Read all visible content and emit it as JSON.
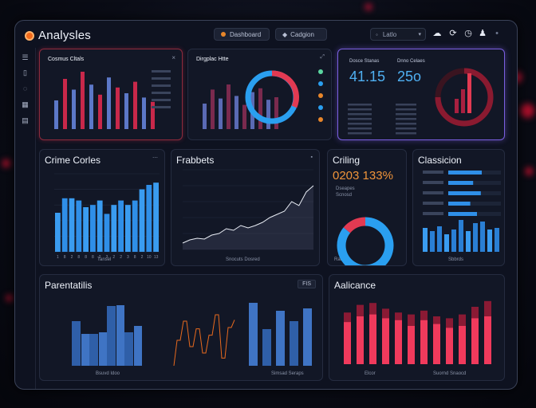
{
  "app": {
    "title": "Analysles"
  },
  "header": {
    "dashboard_label": "Dashboard",
    "second_label": "Cadgion",
    "search_value": "Latlo"
  },
  "icons": [
    "cloud-icon",
    "refresh-icon",
    "clock-icon",
    "user-icon",
    "mic-icon"
  ],
  "sidebar": {
    "items": [
      "menu-icon",
      "report-icon",
      "chat-icon",
      "grid-icon",
      "calendar-icon"
    ]
  },
  "panels": {
    "top_left": {
      "title": "Cosmus Cltals"
    },
    "top_mid": {
      "title": "Dirgplac Htte"
    },
    "top_right": {
      "stat1_label": "Dosce Stanas",
      "stat1_value": "41.15",
      "stat2_label": "Dnno Celaes",
      "stat2_value": "25o"
    },
    "crime": {
      "title": "Crime Corles",
      "xlabel": "Tansel"
    },
    "frabbets": {
      "title": "Frabbets",
      "legend": "Snocuts Dosred"
    },
    "criling": {
      "title": "Criling",
      "headline": "0203 133%",
      "sub1": "Dseapes",
      "sub2": "Scnosd",
      "foot": "Raosrd"
    },
    "classicion": {
      "title": "Classicion",
      "footer": "Sbbrds"
    },
    "parentatiis": {
      "title": "Parentatilis",
      "badge": "FIS",
      "legend1": "Bsuvd Idoo",
      "legend2": "Simsad Seraps"
    },
    "aalicance": {
      "title": "Aalicance",
      "legend1": "Elcor",
      "legend2": "Suornd Snaocd"
    }
  },
  "chart_data": [
    {
      "type": "bar",
      "title": "Crime Corles",
      "categories": [
        "1",
        "8",
        "2",
        "8",
        "8",
        "8",
        "2",
        "3",
        "2",
        "2",
        "3",
        "8",
        "2",
        "10",
        "13"
      ],
      "values": [
        35,
        48,
        48,
        46,
        40,
        42,
        46,
        34,
        42,
        46,
        42,
        46,
        56,
        60,
        62
      ],
      "ylim": [
        0,
        70
      ]
    },
    {
      "type": "line",
      "title": "Frabbets",
      "values": [
        8,
        12,
        14,
        13,
        18,
        20,
        26,
        24,
        30,
        27,
        30,
        34,
        40,
        44,
        48,
        60,
        55,
        72,
        80
      ],
      "ylim": [
        0,
        100
      ]
    },
    {
      "type": "pie",
      "title": "Criling",
      "values": [
        86,
        14
      ]
    },
    {
      "type": "bar",
      "title": "Parentatilis",
      "series": [
        {
          "values": [
            10,
            12,
            46,
            20,
            30,
            16,
            46
          ]
        },
        {
          "values": [
            36,
            20,
            55,
            22,
            45,
            32,
            48
          ]
        }
      ]
    },
    {
      "type": "bar",
      "title": "Aalicance",
      "series": [
        {
          "values": [
            44,
            50,
            52,
            48,
            46,
            40,
            46,
            42,
            38,
            40,
            48,
            50
          ]
        },
        {
          "values": [
            54,
            62,
            64,
            58,
            54,
            52,
            56,
            50,
            48,
            52,
            60,
            66
          ]
        }
      ]
    }
  ]
}
